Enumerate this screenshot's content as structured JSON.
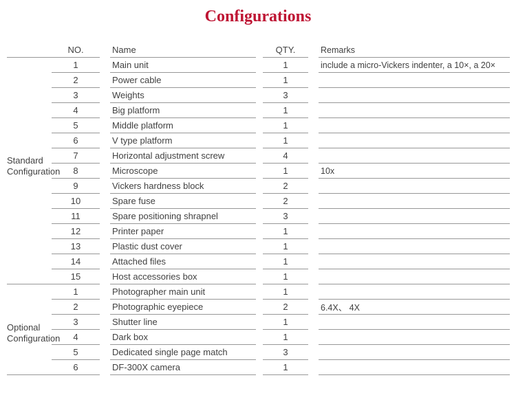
{
  "title": "Configurations",
  "title_color": "#be1433",
  "header": {
    "no": "NO.",
    "name": "Name",
    "qty": "QTY.",
    "remarks": "Remarks"
  },
  "sections": [
    {
      "label": "Standard Configuration",
      "rows": [
        {
          "no": "1",
          "name": "Main unit",
          "qty": "1",
          "remarks": "include a micro-Vickers indenter, a 10×, a 20×"
        },
        {
          "no": "2",
          "name": "Power cable",
          "qty": "1",
          "remarks": ""
        },
        {
          "no": "3",
          "name": "Weights",
          "qty": "3",
          "remarks": ""
        },
        {
          "no": "4",
          "name": "Big platform",
          "qty": "1",
          "remarks": ""
        },
        {
          "no": "5",
          "name": "Middle platform",
          "qty": "1",
          "remarks": ""
        },
        {
          "no": "6",
          "name": "V type platform",
          "qty": "1",
          "remarks": ""
        },
        {
          "no": "7",
          "name": "Horizontal adjustment screw",
          "qty": "4",
          "remarks": ""
        },
        {
          "no": "8",
          "name": "Microscope",
          "qty": "1",
          "remarks": "10x"
        },
        {
          "no": "9",
          "name": "Vickers hardness block",
          "qty": "2",
          "remarks": ""
        },
        {
          "no": "10",
          "name": "Spare fuse",
          "qty": "2",
          "remarks": ""
        },
        {
          "no": "11",
          "name": "Spare positioning shrapnel",
          "qty": "3",
          "remarks": ""
        },
        {
          "no": "12",
          "name": "Printer paper",
          "qty": "1",
          "remarks": ""
        },
        {
          "no": "13",
          "name": "Plastic dust cover",
          "qty": "1",
          "remarks": ""
        },
        {
          "no": "14",
          "name": "Attached files",
          "qty": "1",
          "remarks": ""
        },
        {
          "no": "15",
          "name": "Host accessories box",
          "qty": "1",
          "remarks": ""
        }
      ]
    },
    {
      "label": "Optional Configuration",
      "rows": [
        {
          "no": "1",
          "name": "Photographer main unit",
          "qty": "1",
          "remarks": ""
        },
        {
          "no": "2",
          "name": "Photographic eyepiece",
          "qty": "2",
          "remarks": "6.4X、 4X"
        },
        {
          "no": "3",
          "name": "Shutter line",
          "qty": "1",
          "remarks": ""
        },
        {
          "no": "4",
          "name": "Dark box",
          "qty": "1",
          "remarks": ""
        },
        {
          "no": "5",
          "name": "Dedicated single page match",
          "qty": "3",
          "remarks": ""
        },
        {
          "no": "6",
          "name": "DF-300X camera",
          "qty": "1",
          "remarks": ""
        }
      ]
    }
  ]
}
